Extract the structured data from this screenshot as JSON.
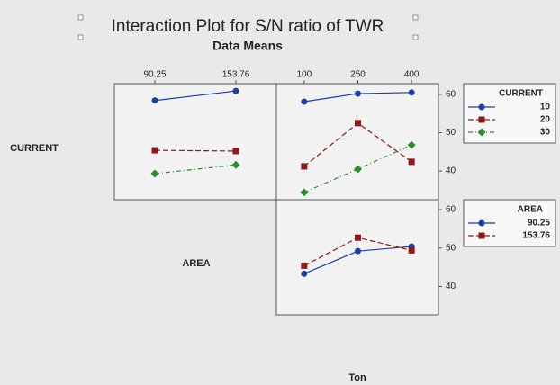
{
  "title": "Interaction Plot for S/N ratio of TWR",
  "subtitle": "Data Means",
  "row_labels": [
    "CURRENT",
    "AREA"
  ],
  "x_label": "Ton",
  "chart_data": [
    {
      "type": "line",
      "x": [
        90.25,
        153.76
      ],
      "xlim": [
        58.5,
        185.5
      ],
      "xticks": [
        90.25,
        153.76
      ],
      "ylim": [
        32.5,
        62.8
      ],
      "series": [
        {
          "color": "#1f3f9f",
          "marker": "circle",
          "dash": "solid",
          "values": [
            58.4,
            60.9
          ]
        },
        {
          "color": "#8b1a1a",
          "marker": "square",
          "dash": "dashed",
          "values": [
            45.4,
            45.2
          ]
        },
        {
          "color": "#2e8b2e",
          "marker": "diamond",
          "dash": "dashdot",
          "values": [
            39.3,
            41.6
          ]
        }
      ]
    },
    {
      "type": "line",
      "x": [
        100,
        250,
        400
      ],
      "xlim": [
        22.5,
        475
      ],
      "xticks": [
        100,
        250,
        400
      ],
      "ylim": [
        32.5,
        62.8
      ],
      "yticks": [
        40,
        50,
        60
      ],
      "legend_title": "CURRENT",
      "series": [
        {
          "name": "10",
          "color": "#1f3f9f",
          "marker": "circle",
          "dash": "solid",
          "values": [
            58.1,
            60.2,
            60.5
          ]
        },
        {
          "name": "20",
          "color": "#8b1a1a",
          "marker": "square",
          "dash": "dashed",
          "values": [
            41.2,
            52.5,
            42.4
          ]
        },
        {
          "name": "30",
          "color": "#2e8b2e",
          "marker": "diamond",
          "dash": "dashdot",
          "values": [
            34.4,
            40.5,
            46.8
          ]
        }
      ]
    },
    {
      "type": "line",
      "x": [
        100,
        250,
        400
      ],
      "xlim": [
        22.5,
        475
      ],
      "ylim": [
        32.6,
        62.6
      ],
      "yticks": [
        40,
        50,
        60
      ],
      "legend_title": "AREA",
      "series": [
        {
          "name": "90.25",
          "color": "#1f3f9f",
          "marker": "circle",
          "dash": "solid",
          "values": [
            43.3,
            49.2,
            50.4
          ]
        },
        {
          "name": "153.76",
          "color": "#8b1a1a",
          "marker": "square",
          "dash": "dashed",
          "values": [
            45.4,
            52.7,
            49.4
          ]
        }
      ]
    }
  ]
}
